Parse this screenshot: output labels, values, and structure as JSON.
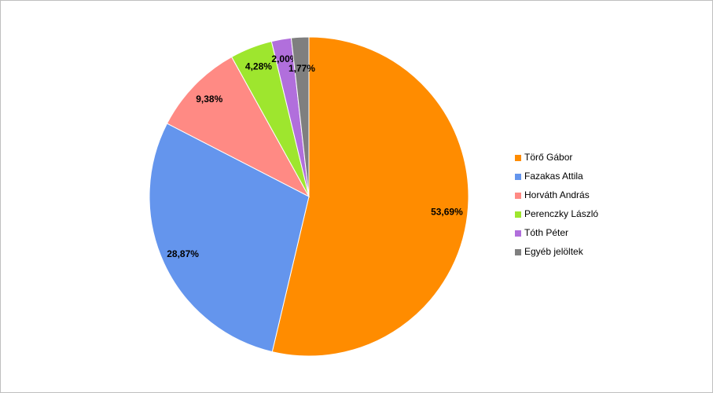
{
  "chart_data": {
    "type": "pie",
    "categories": [
      "Törő Gábor",
      "Fazakas Attila",
      "Horváth András",
      "Perenczky László",
      "Tóth Péter",
      "Egyéb jelöltek"
    ],
    "values": [
      53.69,
      28.87,
      9.38,
      4.28,
      2.0,
      1.77
    ],
    "value_labels": [
      "53,69%",
      "28,87%",
      "9,38%",
      "4,28%",
      "2,00%",
      "1,77%"
    ],
    "colors": [
      "#ff8c00",
      "#6495ed",
      "#ff8a84",
      "#9ee62e",
      "#b16fdc",
      "#7f7f7f"
    ],
    "legend": "right"
  }
}
